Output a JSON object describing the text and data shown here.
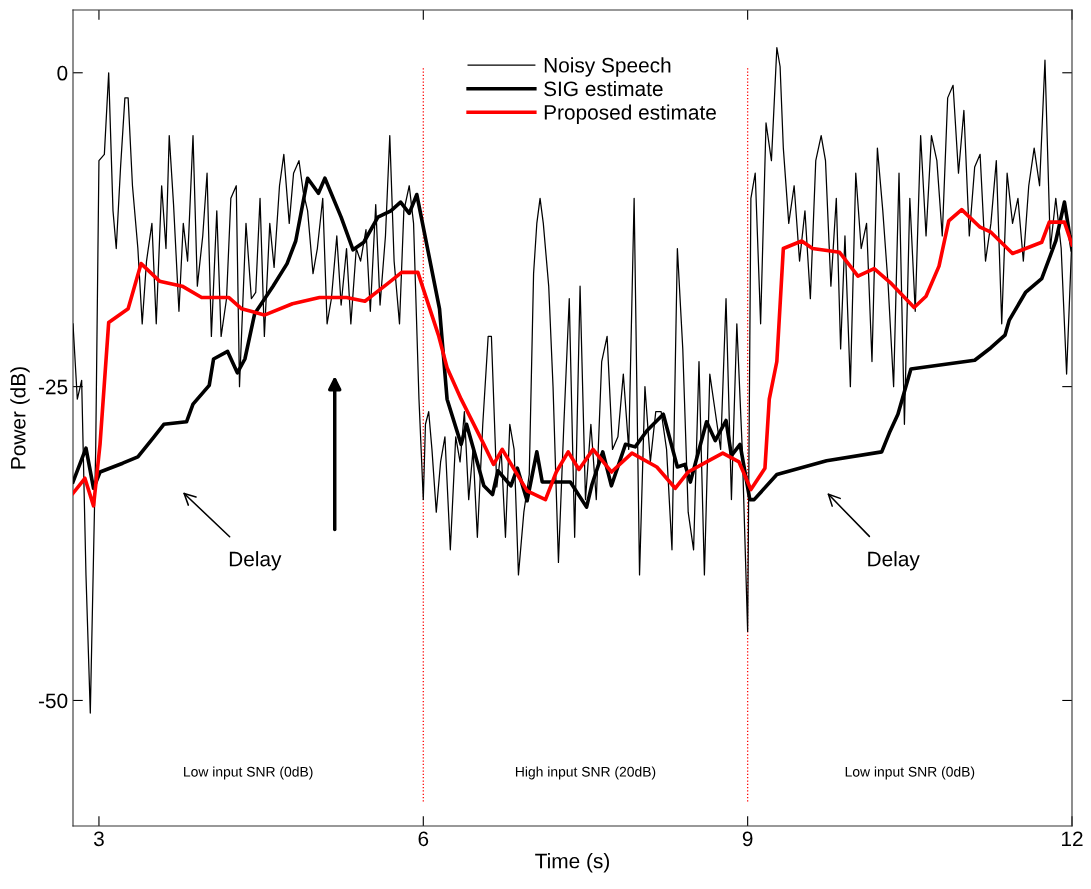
{
  "chart_data": {
    "type": "line",
    "xlabel": "Time (s)",
    "ylabel": "Power (dB)",
    "xlim": [
      2.76,
      12
    ],
    "ylim": [
      -60,
      5
    ],
    "xticks": [
      3,
      6,
      9,
      12
    ],
    "yticks": [
      {
        "value": -50,
        "label": "-50"
      },
      {
        "value": -25,
        "label": "-25"
      },
      {
        "value": 0,
        "label": "0"
      }
    ],
    "grid": false,
    "legend": "top",
    "line_style": "solid",
    "marker": "none",
    "series": [
      {
        "name": "Noisy Speech",
        "color": "#000000",
        "x": [
          2.76,
          2.8,
          2.84,
          2.88,
          2.92,
          2.97,
          3.0,
          3.05,
          3.09,
          3.13,
          3.16,
          3.2,
          3.24,
          3.27,
          3.31,
          3.36,
          3.4,
          3.44,
          3.49,
          3.53,
          3.58,
          3.62,
          3.65,
          3.69,
          3.74,
          3.78,
          3.82,
          3.87,
          3.91,
          3.96,
          4.0,
          4.04,
          4.09,
          4.13,
          4.18,
          4.22,
          4.27,
          4.3,
          4.36,
          4.41,
          4.45,
          4.49,
          4.53,
          4.58,
          4.62,
          4.67,
          4.71,
          4.76,
          4.8,
          4.85,
          4.89,
          4.93,
          4.98,
          5.02,
          5.07,
          5.11,
          5.15,
          5.2,
          5.24,
          5.29,
          5.33,
          5.38,
          5.42,
          5.47,
          5.51,
          5.56,
          5.6,
          5.65,
          5.69,
          5.73,
          5.78,
          5.82,
          5.87,
          5.91,
          5.96,
          6.0,
          6.02,
          6.05,
          6.08,
          6.12,
          6.16,
          6.2,
          6.25,
          6.3,
          6.34,
          6.38,
          6.42,
          6.46,
          6.5,
          6.55,
          6.6,
          6.63,
          6.68,
          6.72,
          6.76,
          6.8,
          6.84,
          6.88,
          6.93,
          6.98,
          7.02,
          7.05,
          7.08,
          7.11,
          7.16,
          7.2,
          7.25,
          7.3,
          7.35,
          7.4,
          7.45,
          7.5,
          7.55,
          7.6,
          7.65,
          7.7,
          7.75,
          7.8,
          7.85,
          7.9,
          7.95,
          8.0,
          8.05,
          8.1,
          8.15,
          8.2,
          8.25,
          8.3,
          8.35,
          8.4,
          8.45,
          8.5,
          8.55,
          8.6,
          8.65,
          8.7,
          8.75,
          8.8,
          8.85,
          8.9,
          8.95,
          9.0,
          9.03,
          9.07,
          9.12,
          9.17,
          9.22,
          9.27,
          9.3,
          9.33,
          9.38,
          9.43,
          9.48,
          9.53,
          9.58,
          9.63,
          9.68,
          9.72,
          9.77,
          9.82,
          9.86,
          9.9,
          9.95,
          10.0,
          10.05,
          10.1,
          10.15,
          10.2,
          10.25,
          10.3,
          10.35,
          10.4,
          10.45,
          10.5,
          10.55,
          10.6,
          10.65,
          10.7,
          10.75,
          10.8,
          10.85,
          10.9,
          10.95,
          11.0,
          11.05,
          11.1,
          11.15,
          11.2,
          11.25,
          11.3,
          11.35,
          11.4,
          11.45,
          11.5,
          11.55,
          11.6,
          11.65,
          11.7,
          11.75,
          11.8,
          11.85,
          11.9,
          11.95,
          12.0
        ],
        "values": [
          -20,
          -26,
          -24.5,
          -40,
          -51,
          -30,
          -7,
          -6.5,
          0,
          -11,
          -14,
          -7.5,
          -2,
          -2,
          -9,
          -14,
          -20,
          -15,
          -12,
          -20,
          -9,
          -14,
          -5,
          -10.5,
          -19,
          -12,
          -15,
          -5,
          -17,
          -13,
          -8,
          -21,
          -11,
          -21,
          -18,
          -10,
          -9,
          -25,
          -12,
          -18,
          -17.5,
          -10,
          -21,
          -12,
          -15.5,
          -9,
          -6.5,
          -12,
          -8,
          -7,
          -9.5,
          -11,
          -16,
          -14,
          -10,
          -20,
          -18,
          -13,
          -18.5,
          -14,
          -20,
          -14,
          -15,
          -12.5,
          -19,
          -10.5,
          -18.5,
          -13,
          -5,
          -15,
          -20,
          -11,
          -9,
          -12,
          -26,
          -34,
          -28,
          -27,
          -30,
          -35,
          -31,
          -29,
          -38,
          -29,
          -31,
          -27,
          -34,
          -30,
          -37,
          -28,
          -21,
          -21,
          -33,
          -30,
          -37,
          -28,
          -30,
          -40,
          -35,
          -32,
          -16,
          -12,
          -10,
          -12,
          -17,
          -25,
          -39,
          -28,
          -18,
          -37,
          -17,
          -34,
          -28,
          -34,
          -23,
          -21,
          -30,
          -29,
          -24,
          -30,
          -10,
          -40,
          -25,
          -31,
          -27,
          -27,
          -30,
          -38,
          -14,
          -22,
          -35,
          -38,
          -23,
          -40,
          -24,
          -27,
          -30,
          -18,
          -34,
          -20,
          -30,
          -44.5,
          -10,
          -8,
          -20,
          -4,
          -7,
          2,
          0.5,
          -6,
          -12,
          -9,
          -15,
          -11,
          -18,
          -7,
          -5,
          -7,
          -17,
          -10,
          -22,
          -13,
          -25,
          -8,
          -14,
          -12,
          -23,
          -6,
          -11,
          -17,
          -25,
          -8,
          -28,
          -10,
          -19,
          -5,
          -13,
          -5,
          -7,
          -13,
          -2,
          -1,
          -8,
          -3,
          -13,
          -7.5,
          -6.5,
          -15,
          -12,
          -7,
          -20,
          -8,
          -12,
          -10,
          -15,
          -9,
          -6,
          -9,
          1,
          -14,
          -10,
          -14,
          -24,
          -13
        ]
      },
      {
        "name": "SIG estimate",
        "color": "#000000",
        "x": [
          2.76,
          2.88,
          2.95,
          3.01,
          3.22,
          3.36,
          3.5,
          3.6,
          3.81,
          3.87,
          4.02,
          4.06,
          4.19,
          4.28,
          4.35,
          4.44,
          4.61,
          4.74,
          4.82,
          4.93,
          5.03,
          5.09,
          5.24,
          5.35,
          5.45,
          5.58,
          5.7,
          5.79,
          5.87,
          5.94,
          6.15,
          6.22,
          6.35,
          6.4,
          6.56,
          6.64,
          6.69,
          6.81,
          6.87,
          6.96,
          7.05,
          7.1,
          7.36,
          7.51,
          7.56,
          7.66,
          7.74,
          7.87,
          7.96,
          8.07,
          8.22,
          8.35,
          8.42,
          8.47,
          8.62,
          8.7,
          8.8,
          8.85,
          8.93,
          9.02,
          9.06,
          9.27,
          9.73,
          10.24,
          10.31,
          10.39,
          10.51,
          11.1,
          11.25,
          11.38,
          11.42,
          11.57,
          11.72,
          11.85,
          11.93,
          12.0
        ],
        "values": [
          -32.6,
          -29.9,
          -33.1,
          -31.8,
          -31.1,
          -30.6,
          -29.1,
          -28,
          -27.8,
          -26.4,
          -24.9,
          -22.8,
          -22.2,
          -23.9,
          -22.8,
          -19.2,
          -17,
          -15.2,
          -13.4,
          -8.4,
          -9.6,
          -8.4,
          -11.5,
          -14.1,
          -13.5,
          -11.5,
          -11,
          -10.3,
          -11.2,
          -9.7,
          -18.8,
          -26,
          -29.6,
          -28,
          -32.9,
          -33.6,
          -31.7,
          -32.9,
          -31.5,
          -34.1,
          -30.2,
          -32.6,
          -32.6,
          -34.6,
          -32.8,
          -30.2,
          -32.9,
          -29.6,
          -29.8,
          -28.5,
          -27.2,
          -31.4,
          -31.2,
          -32.6,
          -27.8,
          -29.3,
          -27.7,
          -30.5,
          -29.6,
          -34,
          -34,
          -32,
          -30.9,
          -30.2,
          -28.7,
          -27.2,
          -23.6,
          -22.9,
          -21.9,
          -20.9,
          -19.7,
          -17.5,
          -16.4,
          -13.4,
          -10.3,
          -14.1
        ]
      },
      {
        "name": "Proposed estimate",
        "color": "#ff0000",
        "x": [
          2.76,
          2.87,
          2.95,
          3.01,
          3.09,
          3.27,
          3.39,
          3.56,
          3.77,
          3.95,
          4.2,
          4.32,
          4.53,
          4.79,
          5.04,
          5.29,
          5.46,
          5.67,
          5.8,
          5.95,
          6.14,
          6.22,
          6.35,
          6.56,
          6.65,
          6.73,
          6.96,
          7.13,
          7.23,
          7.34,
          7.44,
          7.57,
          7.74,
          7.93,
          8.16,
          8.33,
          8.45,
          8.62,
          8.77,
          8.92,
          9.03,
          9.16,
          9.2,
          9.27,
          9.33,
          9.5,
          9.6,
          9.85,
          10.02,
          10.17,
          10.33,
          10.54,
          10.65,
          10.77,
          10.86,
          10.98,
          11.15,
          11.25,
          11.45,
          11.72,
          11.79,
          11.93,
          12.0
        ],
        "values": [
          -33.5,
          -32.3,
          -34.5,
          -29.6,
          -19.9,
          -18.8,
          -15.2,
          -16.6,
          -17,
          -17.9,
          -17.9,
          -18.8,
          -19.3,
          -18.4,
          -17.9,
          -17.9,
          -18.2,
          -16.8,
          -15.9,
          -15.9,
          -20.9,
          -23.5,
          -26,
          -29.6,
          -31.2,
          -30,
          -33.3,
          -34,
          -31.8,
          -30.2,
          -31.6,
          -30,
          -31.8,
          -30.3,
          -31.4,
          -33.1,
          -31.8,
          -31,
          -30.3,
          -31,
          -33.2,
          -31.5,
          -26,
          -23,
          -14,
          -13.4,
          -14,
          -14.3,
          -16.2,
          -15.6,
          -16.8,
          -18.7,
          -17.8,
          -15.4,
          -11.8,
          -10.9,
          -12.3,
          -12.7,
          -14.4,
          -13.5,
          -11.9,
          -11.9,
          -13.7
        ]
      }
    ],
    "ref_lines": [
      {
        "axis": "x",
        "value": 6,
        "color": "#ff0000",
        "line_style": "dotted"
      },
      {
        "axis": "x",
        "value": 9,
        "color": "#ff0000",
        "line_style": "dotted"
      }
    ],
    "annotations": [
      "Delay",
      "Delay",
      "Low input SNR (0dB)",
      "High input SNR (20dB)",
      "Low input SNR (0dB)"
    ]
  }
}
